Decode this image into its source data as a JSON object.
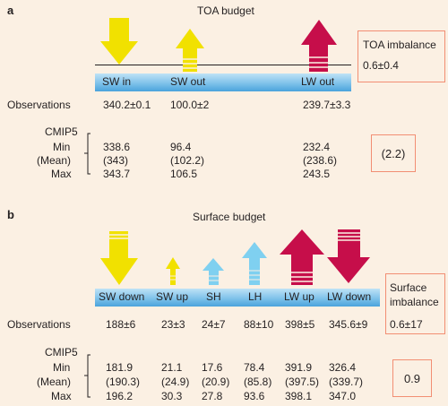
{
  "colors": {
    "sw": "#f1e100",
    "lw": "#c60e4a",
    "lh": "#7fd0f0",
    "box": "#f28e73"
  },
  "panel_a": {
    "letter": "a",
    "title": "TOA budget",
    "band_labels": [
      "SW in",
      "SW out",
      "LW out"
    ],
    "imbalance_label": "TOA imbalance",
    "imbalance_value": "0.6±0.4",
    "observations_label": "Observations",
    "observations": [
      "340.2±0.1",
      "100.0±2",
      "239.7±3.3"
    ],
    "cmip5_label": "CMIP5",
    "row_labels": [
      "Min",
      "(Mean)",
      "Max"
    ],
    "min": [
      "338.6",
      "96.4",
      "232.4"
    ],
    "mean": [
      "(343)",
      "(102.2)",
      "(238.6)"
    ],
    "max": [
      "343.7",
      "106.5",
      "243.5"
    ],
    "model_imbalance": "(2.2)"
  },
  "panel_b": {
    "letter": "b",
    "title": "Surface budget",
    "band_labels": [
      "SW down",
      "SW up",
      "SH",
      "LH",
      "LW up",
      "LW down"
    ],
    "imbalance_label_line1": "Surface",
    "imbalance_label_line2": "imbalance",
    "imbalance_value": "0.6±17",
    "observations_label": "Observations",
    "observations": [
      "188±6",
      "23±3",
      "24±7",
      "88±10",
      "398±5",
      "345.6±9"
    ],
    "cmip5_label": "CMIP5",
    "row_labels": [
      "Min",
      "(Mean)",
      "Max"
    ],
    "min": [
      "181.9",
      "21.1",
      "17.6",
      "78.4",
      "391.9",
      "326.4"
    ],
    "mean": [
      "(190.3)",
      "(24.9)",
      "(20.9)",
      "(85.8)",
      "(397.5)",
      "(339.7)"
    ],
    "max": [
      "196.2",
      "30.3",
      "27.8",
      "93.6",
      "398.1",
      "347.0"
    ],
    "model_imbalance": "0.9"
  }
}
